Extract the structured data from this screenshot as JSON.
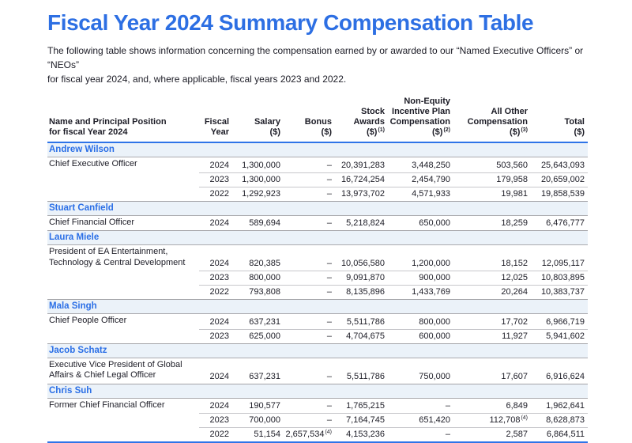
{
  "page": {
    "title": "Fiscal Year 2024 Summary Compensation Table",
    "subtitle": "The following table shows information concerning the compensation earned by or awarded to our “Named Executive Officers” or “NEOs”\nfor fiscal year 2024, and, where applicable, fiscal years 2023 and 2022."
  },
  "colors": {
    "accent_blue": "#2D6FE3",
    "header_rule_blue": "#2E74E8",
    "name_row_background": "#EBF2F9",
    "row_divider_gray": "#C7C7CB",
    "section_divider_gray": "#A3A3A7"
  },
  "table": {
    "columns": [
      {
        "id": "name",
        "label": "Name and Principal Position\nfor fiscal Year 2024",
        "sup": ""
      },
      {
        "id": "year",
        "label": "Fiscal\nYear",
        "sup": ""
      },
      {
        "id": "salary",
        "label": "Salary\n($)",
        "sup": ""
      },
      {
        "id": "bonus",
        "label": "Bonus\n($)",
        "sup": ""
      },
      {
        "id": "stock",
        "label": "Stock\nAwards\n($)",
        "sup": "(1)"
      },
      {
        "id": "neip",
        "label": "Non-Equity\nIncentive Plan\nCompensation\n($)",
        "sup": "(2)"
      },
      {
        "id": "other",
        "label": "All Other\nCompensation\n($)",
        "sup": "(3)"
      },
      {
        "id": "total",
        "label": "Total\n($)",
        "sup": ""
      }
    ],
    "executives": [
      {
        "name": "Andrew Wilson",
        "position": "Chief Executive Officer",
        "rows": [
          {
            "year": "2024",
            "salary": "1,300,000",
            "bonus": "–",
            "stock": "20,391,283",
            "neip": "3,448,250",
            "other": "503,560",
            "total": "25,643,093"
          },
          {
            "year": "2023",
            "salary": "1,300,000",
            "bonus": "–",
            "stock": "16,724,254",
            "neip": "2,454,790",
            "other": "179,958",
            "total": "20,659,002"
          },
          {
            "year": "2022",
            "salary": "1,292,923",
            "bonus": "–",
            "stock": "13,973,702",
            "neip": "4,571,933",
            "other": "19,981",
            "total": "19,858,539"
          }
        ]
      },
      {
        "name": "Stuart Canfield",
        "position": "Chief Financial Officer",
        "rows": [
          {
            "year": "2024",
            "salary": "589,694",
            "bonus": "–",
            "stock": "5,218,824",
            "neip": "650,000",
            "other": "18,259",
            "total": "6,476,777"
          }
        ]
      },
      {
        "name": "Laura Miele",
        "position": "President of EA Entertainment,\nTechnology & Central Development",
        "rows": [
          {
            "year": "2024",
            "salary": "820,385",
            "bonus": "–",
            "stock": "10,056,580",
            "neip": "1,200,000",
            "other": "18,152",
            "total": "12,095,117"
          },
          {
            "year": "2023",
            "salary": "800,000",
            "bonus": "–",
            "stock": "9,091,870",
            "neip": "900,000",
            "other": "12,025",
            "total": "10,803,895"
          },
          {
            "year": "2022",
            "salary": "793,808",
            "bonus": "–",
            "stock": "8,135,896",
            "neip": "1,433,769",
            "other": "20,264",
            "total": "10,383,737"
          }
        ]
      },
      {
        "name": "Mala Singh",
        "position": "Chief People Officer",
        "rows": [
          {
            "year": "2024",
            "salary": "637,231",
            "bonus": "–",
            "stock": "5,511,786",
            "neip": "800,000",
            "other": "17,702",
            "total": "6,966,719"
          },
          {
            "year": "2023",
            "salary": "625,000",
            "bonus": "–",
            "stock": "4,704,675",
            "neip": "600,000",
            "other": "11,927",
            "total": "5,941,602"
          }
        ]
      },
      {
        "name": "Jacob Schatz",
        "position": "Executive Vice President of Global\nAffairs & Chief Legal Officer",
        "rows": [
          {
            "year": "2024",
            "salary": "637,231",
            "bonus": "–",
            "stock": "5,511,786",
            "neip": "750,000",
            "other": "17,607",
            "total": "6,916,624"
          }
        ]
      },
      {
        "name": "Chris Suh",
        "position": "Former Chief Financial Officer",
        "rows": [
          {
            "year": "2024",
            "salary": "190,577",
            "bonus": "–",
            "stock": "1,765,215",
            "neip": "–",
            "other": "6,849",
            "total": "1,962,641"
          },
          {
            "year": "2023",
            "salary": "700,000",
            "bonus": "–",
            "stock": "7,164,745",
            "neip": "651,420",
            "other": "112,708",
            "other_sup": "(4)",
            "total": "8,628,873"
          },
          {
            "year": "2022",
            "salary": "51,154",
            "bonus": "2,657,534",
            "bonus_sup": "(4)",
            "stock": "4,153,236",
            "neip": "–",
            "other": "2,587",
            "total": "6,864,511"
          }
        ]
      }
    ]
  }
}
